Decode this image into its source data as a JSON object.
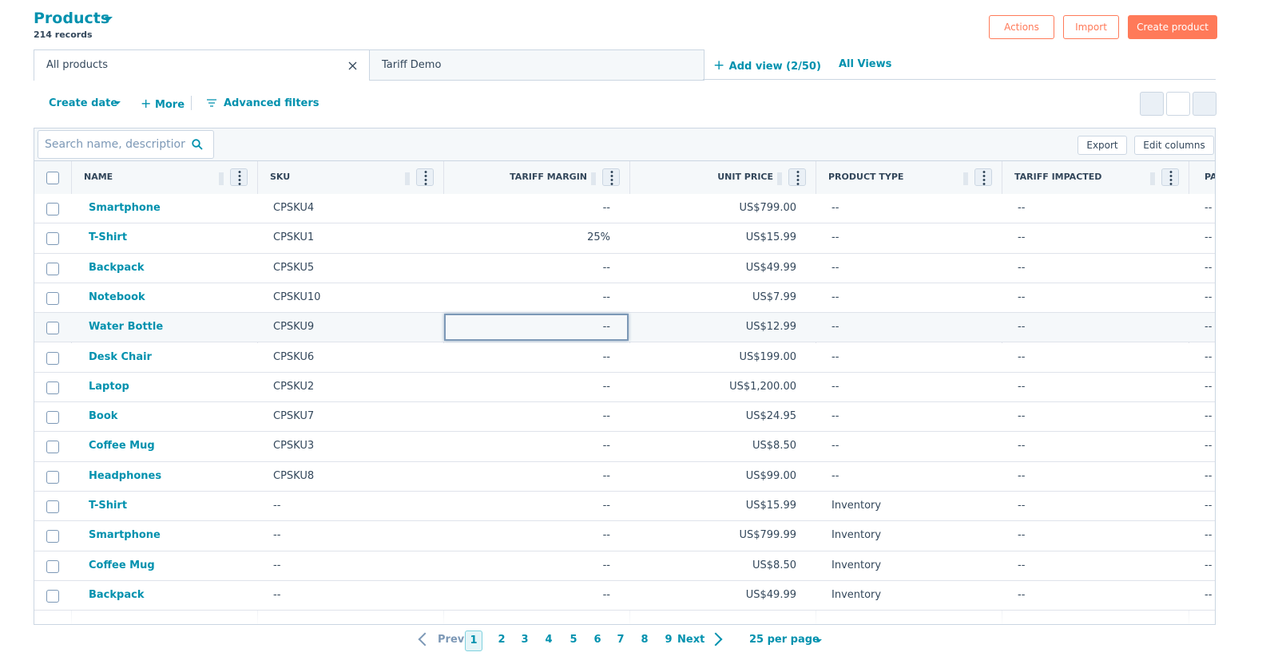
{
  "header": {
    "title": "Products",
    "subtitle": "214 records",
    "buttons": [
      "Actions",
      "Import",
      "Create product"
    ]
  },
  "tabs": {
    "items": [
      "All products",
      "Tariff Demo"
    ],
    "add_view": "Add view (2/50)",
    "all_views": "All Views"
  },
  "filters": [
    "Create date",
    "More",
    "Advanced filters"
  ],
  "toolbar": {
    "search_placeholder": "Search name, descriptior",
    "export": "Export",
    "edit_columns": "Edit columns"
  },
  "table": {
    "columns": [
      "NAME",
      "SKU",
      "TARIFF MARGIN",
      "UNIT PRICE",
      "PRODUCT TYPE",
      "TARIFF IMPACTED",
      "PA"
    ],
    "rows": [
      [
        "Smartphone",
        "CPSKU4",
        "--",
        "US$799.00",
        "--",
        "--",
        "--"
      ],
      [
        "T-Shirt",
        "CPSKU1",
        "25%",
        "US$15.99",
        "--",
        "--",
        "--"
      ],
      [
        "Backpack",
        "CPSKU5",
        "--",
        "US$49.99",
        "--",
        "--",
        "--"
      ],
      [
        "Notebook",
        "CPSKU10",
        "--",
        "US$7.99",
        "--",
        "--",
        "--"
      ],
      [
        "Water Bottle",
        "CPSKU9",
        "--",
        "US$12.99",
        "--",
        "--",
        "--"
      ],
      [
        "Desk Chair",
        "CPSKU6",
        "--",
        "US$199.00",
        "--",
        "--",
        "--"
      ],
      [
        "Laptop",
        "CPSKU2",
        "--",
        "US$1,200.00",
        "--",
        "--",
        "--"
      ],
      [
        "Book",
        "CPSKU7",
        "--",
        "US$24.95",
        "--",
        "--",
        "--"
      ],
      [
        "Coffee Mug",
        "CPSKU3",
        "--",
        "US$8.50",
        "--",
        "--",
        "--"
      ],
      [
        "Headphones",
        "CPSKU8",
        "--",
        "US$99.00",
        "--",
        "--",
        "--"
      ],
      [
        "T-Shirt",
        "--",
        "--",
        "US$15.99",
        "Inventory",
        "--",
        "--"
      ],
      [
        "Smartphone",
        "--",
        "--",
        "US$799.99",
        "Inventory",
        "--",
        "--"
      ],
      [
        "Coffee Mug",
        "--",
        "--",
        "US$8.50",
        "Inventory",
        "--",
        "--"
      ],
      [
        "Backpack",
        "--",
        "--",
        "US$49.99",
        "Inventory",
        "--",
        "--"
      ]
    ]
  },
  "pagination": {
    "prev": "Prev",
    "pages": [
      1,
      2,
      3,
      4,
      5,
      6,
      7,
      8,
      9
    ],
    "next": "Next",
    "per_page": "25 per page"
  }
}
